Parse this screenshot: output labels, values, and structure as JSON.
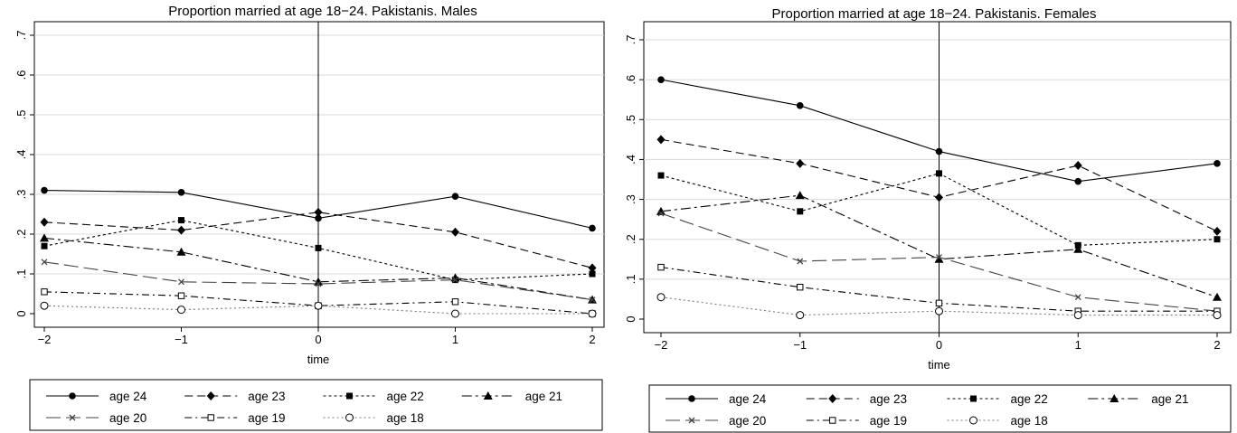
{
  "chart_data": [
    {
      "type": "line",
      "title": "Proportion married at age 18−24. Pakistanis. Males",
      "xlabel": "time",
      "ylabel": "",
      "x": [
        -2,
        -1,
        0,
        1,
        2
      ],
      "x_ticks": [
        "−2",
        "−1",
        "0",
        "1",
        "2"
      ],
      "y_ticks": [
        "0",
        ".1",
        ".2",
        ".3",
        ".4",
        ".5",
        ".6",
        ".7"
      ],
      "ylim": [
        0,
        0.7
      ],
      "xlim": [
        -2,
        2
      ],
      "grid": true,
      "reference_line_x": 0,
      "legend_position": "bottom",
      "series": [
        {
          "name": "age 24",
          "values": [
            0.31,
            0.305,
            0.24,
            0.295,
            0.215
          ]
        },
        {
          "name": "age 23",
          "values": [
            0.23,
            0.21,
            0.255,
            0.205,
            0.115
          ]
        },
        {
          "name": "age 22",
          "values": [
            0.17,
            0.235,
            0.165,
            0.085,
            0.1
          ]
        },
        {
          "name": "age 21",
          "values": [
            0.19,
            0.155,
            0.08,
            0.09,
            0.035
          ]
        },
        {
          "name": "age 20",
          "values": [
            0.13,
            0.08,
            0.075,
            0.085,
            0.035
          ]
        },
        {
          "name": "age 19",
          "values": [
            0.055,
            0.045,
            0.02,
            0.03,
            0.0
          ]
        },
        {
          "name": "age 18",
          "values": [
            0.02,
            0.01,
            0.02,
            0.0,
            0.0
          ]
        }
      ]
    },
    {
      "type": "line",
      "title": "Proportion married at age 18−24. Pakistanis. Females",
      "xlabel": "time",
      "ylabel": "",
      "x": [
        -2,
        -1,
        0,
        1,
        2
      ],
      "x_ticks": [
        "−2",
        "−1",
        "0",
        "1",
        "2"
      ],
      "y_ticks": [
        "0",
        ".1",
        ".2",
        ".3",
        ".4",
        ".5",
        ".6",
        ".7"
      ],
      "ylim": [
        0,
        0.7
      ],
      "xlim": [
        -2,
        2
      ],
      "grid": true,
      "reference_line_x": 0,
      "legend_position": "bottom",
      "series": [
        {
          "name": "age 24",
          "values": [
            0.6,
            0.535,
            0.42,
            0.345,
            0.39
          ]
        },
        {
          "name": "age 23",
          "values": [
            0.45,
            0.39,
            0.305,
            0.385,
            0.22
          ]
        },
        {
          "name": "age 22",
          "values": [
            0.36,
            0.27,
            0.365,
            0.185,
            0.2
          ]
        },
        {
          "name": "age 21",
          "values": [
            0.27,
            0.31,
            0.15,
            0.175,
            0.055
          ]
        },
        {
          "name": "age 20",
          "values": [
            0.265,
            0.145,
            0.155,
            0.055,
            0.02
          ]
        },
        {
          "name": "age 19",
          "values": [
            0.13,
            0.08,
            0.04,
            0.02,
            0.02
          ]
        },
        {
          "name": "age 18",
          "values": [
            0.055,
            0.01,
            0.02,
            0.01,
            0.01
          ]
        }
      ]
    }
  ]
}
